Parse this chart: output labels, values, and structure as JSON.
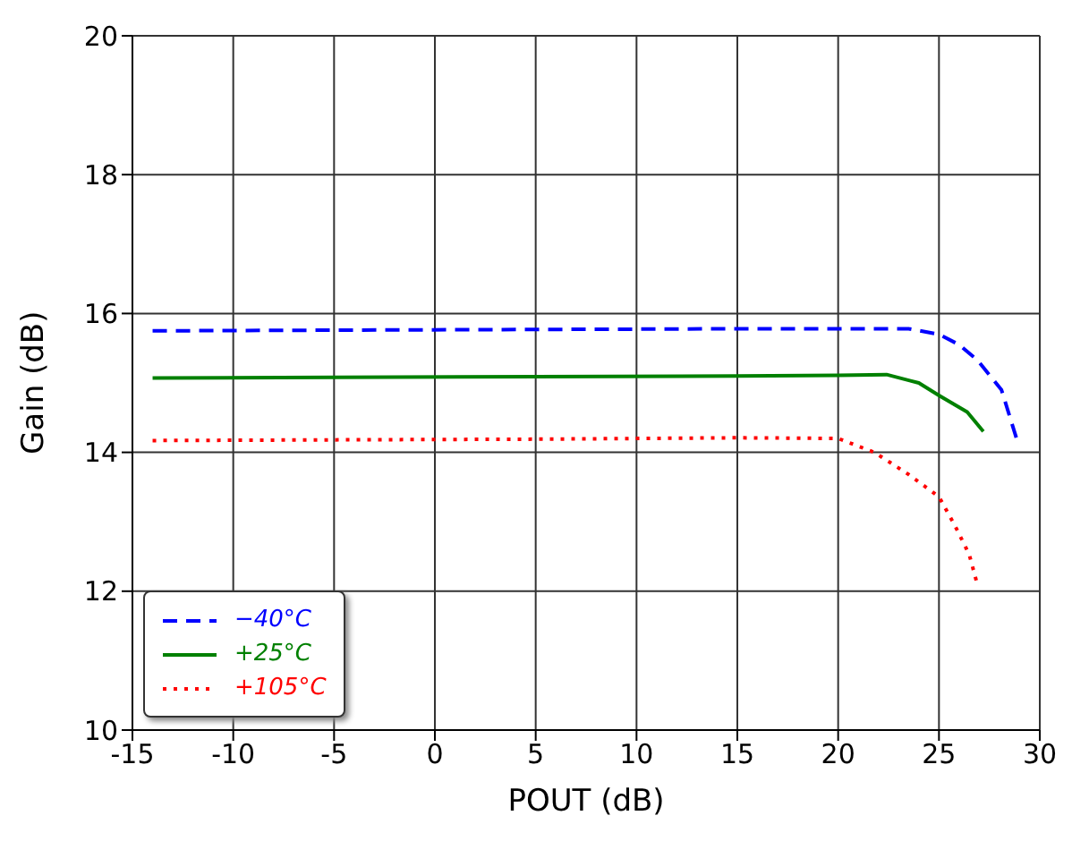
{
  "chart_data": {
    "type": "line",
    "xlabel": "POUT (dB)",
    "ylabel": "Gain (dB)",
    "xlim": [
      -15,
      30
    ],
    "xticks": [
      -15,
      -10,
      -5,
      0,
      5,
      10,
      15,
      20,
      25,
      30
    ],
    "ylim": [
      10,
      20
    ],
    "yticks": [
      10,
      12,
      14,
      16,
      18,
      20
    ],
    "grid": true,
    "legend": "bottom left",
    "marker": "none",
    "series": [
      {
        "name": "−40°C",
        "color": "#0000ff",
        "line_style": "dashed",
        "x": [
          -14,
          -5,
          5,
          15,
          20,
          23.5,
          25,
          26,
          26.9,
          28.1,
          28.9
        ],
        "values": [
          15.75,
          15.76,
          15.77,
          15.78,
          15.78,
          15.78,
          15.7,
          15.55,
          15.33,
          14.9,
          14.15
        ]
      },
      {
        "name": "+25°C",
        "color": "#008000",
        "line_style": "solid",
        "x": [
          -14,
          -5,
          5,
          15,
          20,
          22.4,
          24,
          25,
          26.4,
          27.2
        ],
        "values": [
          15.07,
          15.08,
          15.09,
          15.1,
          15.11,
          15.12,
          15.0,
          14.82,
          14.58,
          14.3
        ]
      },
      {
        "name": "+105°C",
        "color": "#ff0000",
        "line_style": "dotted",
        "x": [
          -14,
          -5,
          5,
          15,
          20,
          21.8,
          23.5,
          25,
          25.8,
          26.5,
          26.9
        ],
        "values": [
          14.17,
          14.18,
          14.19,
          14.21,
          14.2,
          14.0,
          13.68,
          13.36,
          12.94,
          12.53,
          12.1
        ]
      }
    ]
  }
}
